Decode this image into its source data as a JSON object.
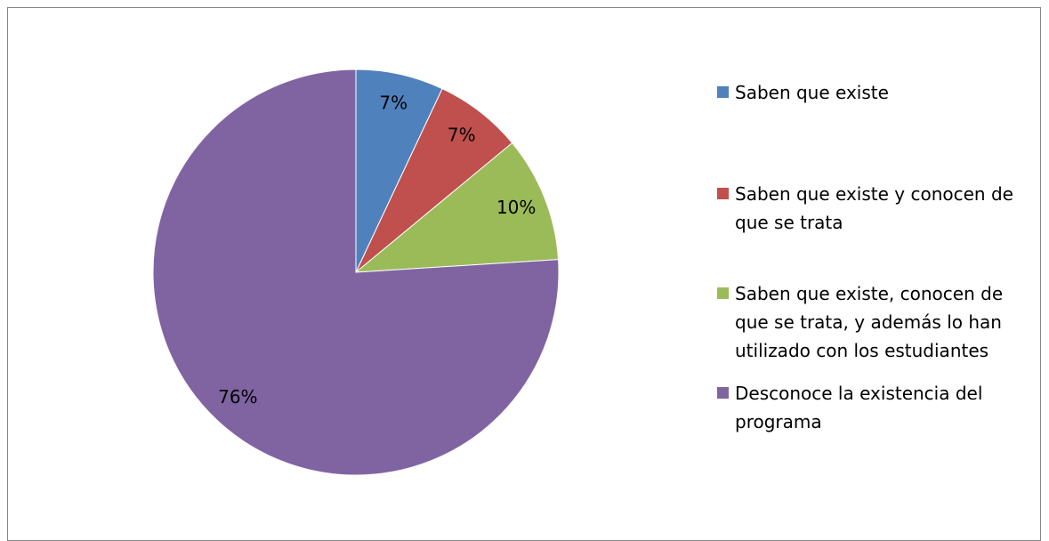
{
  "chart_data": {
    "type": "pie",
    "categories": [
      "Saben que existe",
      "Saben que existe y conocen de que se trata",
      "Saben que existe, conocen de que se trata, y además lo han utilizado con los estudiantes",
      "Desconoce la existencia del programa"
    ],
    "values": [
      7,
      7,
      10,
      76
    ],
    "value_labels": [
      "7%",
      "7%",
      "10%",
      "76%"
    ],
    "colors": [
      "#4f81bd",
      "#c0504d",
      "#9bbb59",
      "#8064a2"
    ],
    "legend": "right"
  }
}
